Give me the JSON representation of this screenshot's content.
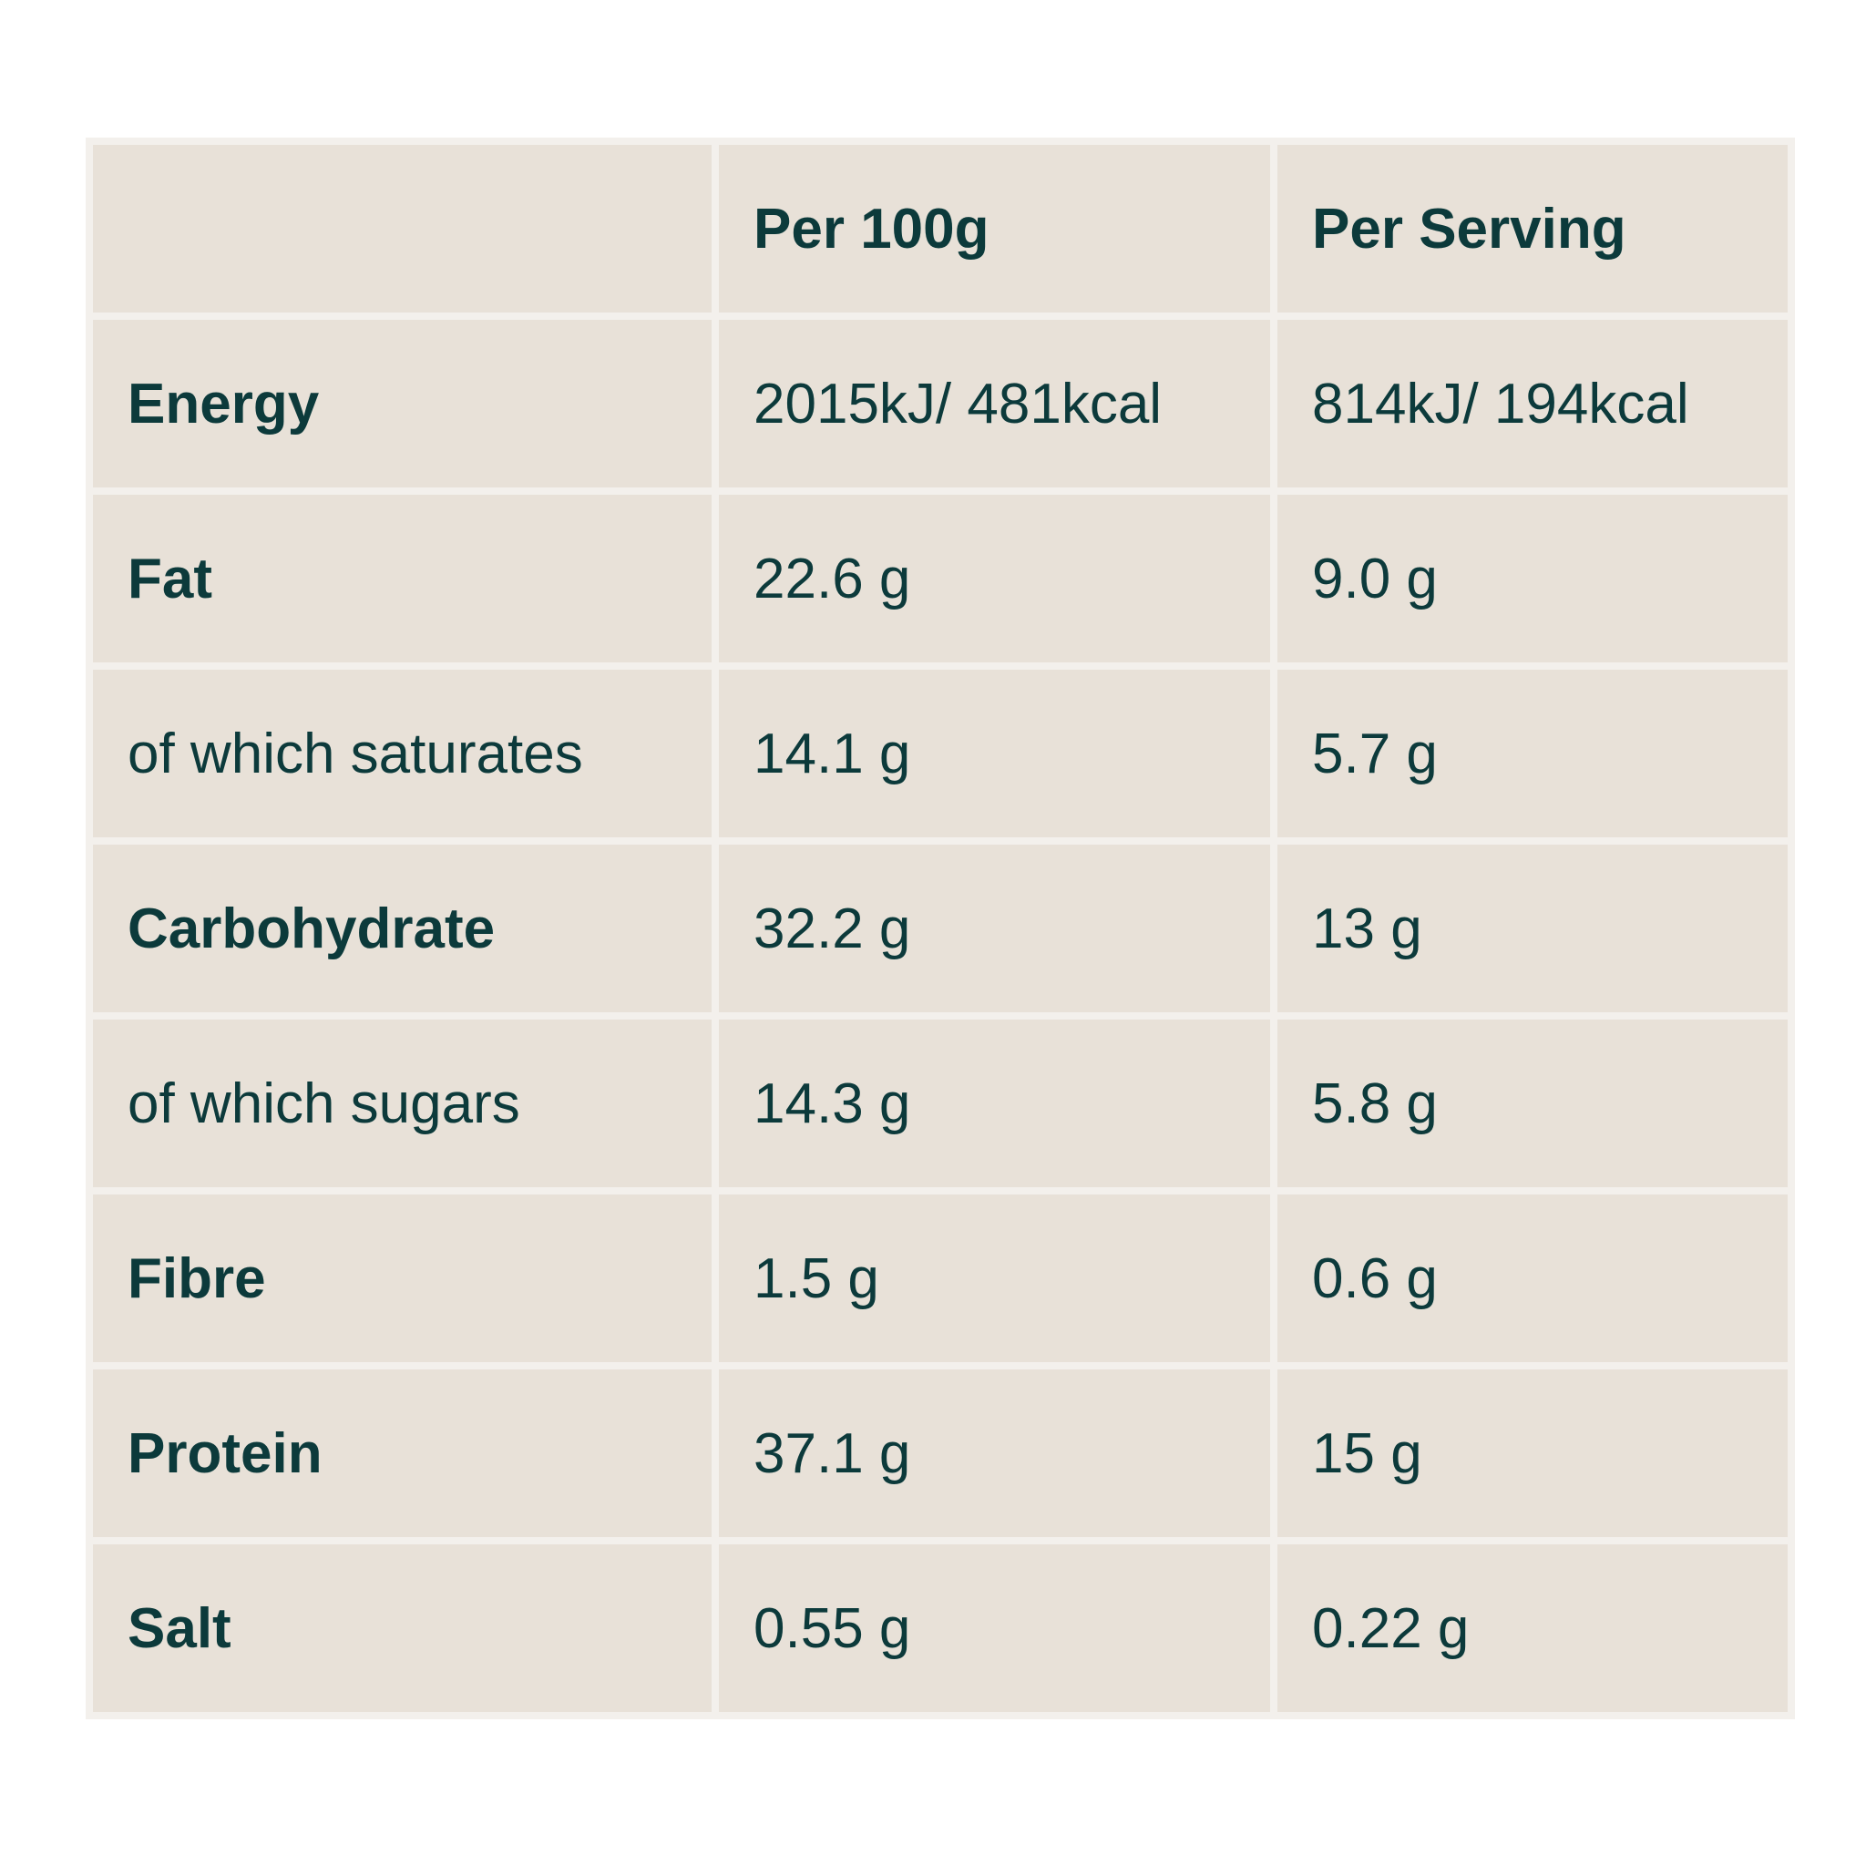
{
  "table": {
    "columns": [
      "Per 100g",
      "Per Serving"
    ],
    "rows": [
      [
        "Energy",
        "2015kJ/ 481kcal",
        "814kJ/ 194kcal"
      ],
      [
        "Fat",
        "22.6 g",
        "9.0 g"
      ],
      [
        "of which saturates",
        "14.1 g",
        "5.7 g"
      ],
      [
        "Carbohydrate",
        "32.2 g",
        "13 g"
      ],
      [
        "of which sugars",
        "14.3 g",
        "5.8 g"
      ],
      [
        "Fibre",
        "1.5 g",
        "0.6 g"
      ],
      [
        "Protein",
        "37.1 g",
        "15 g"
      ],
      [
        "Salt",
        "0.55 g",
        "0.22 g"
      ]
    ]
  }
}
